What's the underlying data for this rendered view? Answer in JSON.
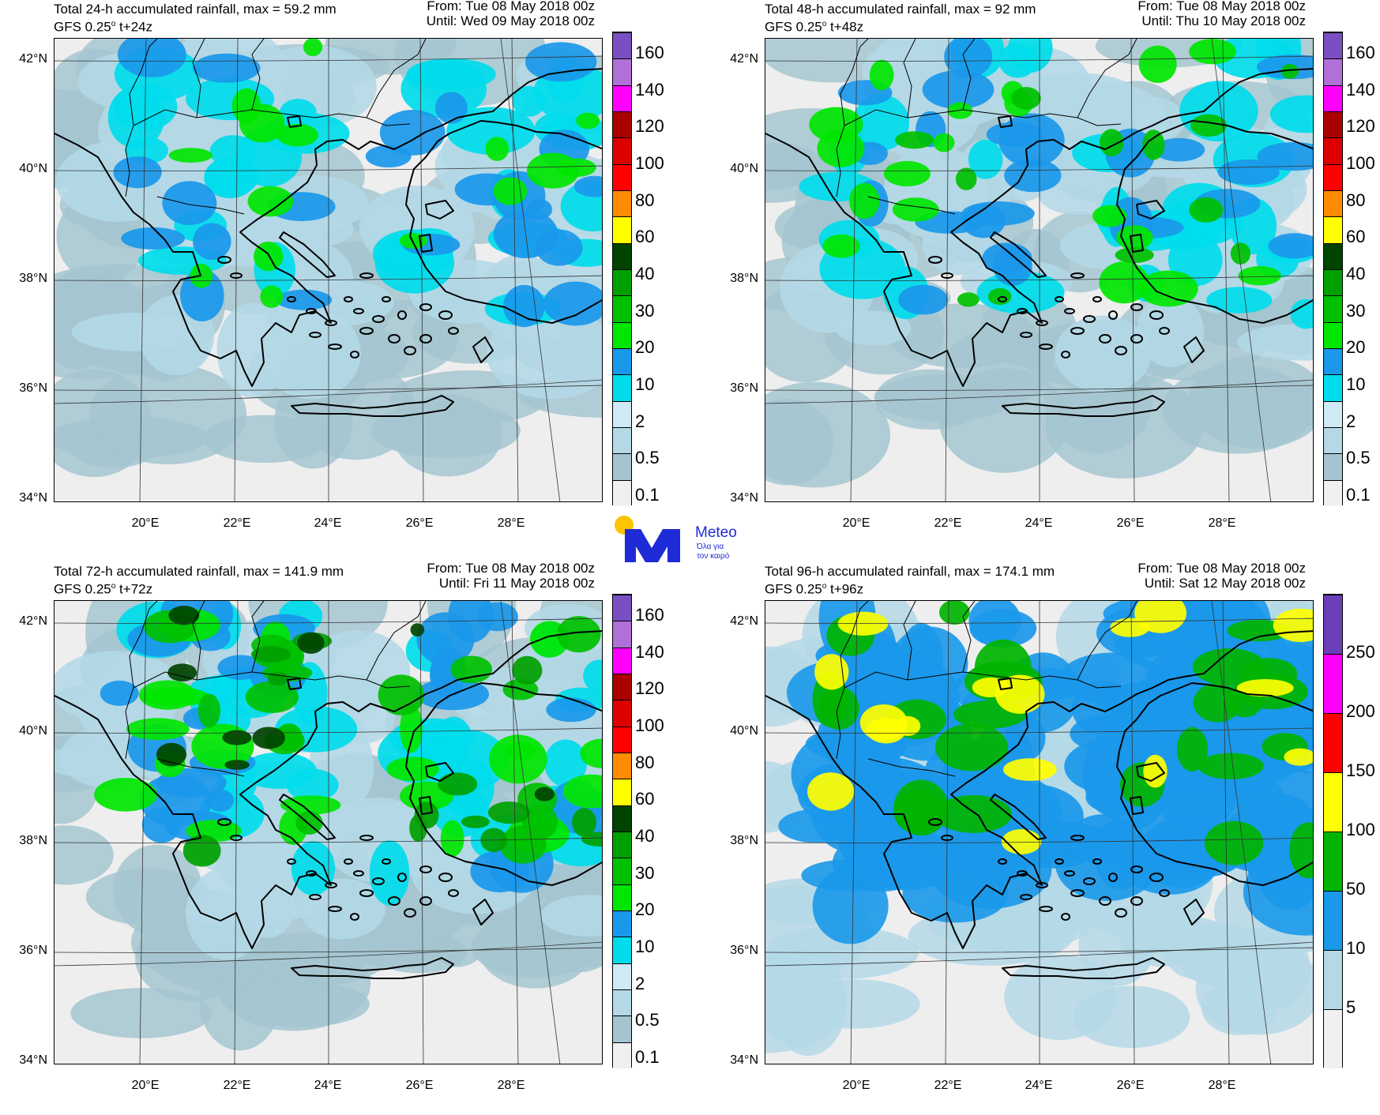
{
  "panels": [
    {
      "title": "Total 24-h accumulated rainfall, max = 59.2 mm",
      "model": "GFS 0.25",
      "degree_mark": "o",
      "lead": " t+24z",
      "from": "From: Tue 08 May 2018 00z",
      "until": "Until: Wed 09 May 2018 00z",
      "intensity": 0.35,
      "colorbar_labels": [
        "160",
        "140",
        "120",
        "100",
        "80",
        "60",
        "40",
        "30",
        "20",
        "10",
        "2",
        "0.5",
        "0.1"
      ]
    },
    {
      "title": "Total 48-h accumulated rainfall, max = 92 mm",
      "model": "GFS 0.25",
      "degree_mark": "o",
      "lead": " t+48z",
      "from": "From: Tue 08 May 2018 00z",
      "until": "Until: Thu 10 May 2018 00z",
      "intensity": 0.55,
      "colorbar_labels": [
        "160",
        "140",
        "120",
        "100",
        "80",
        "60",
        "40",
        "30",
        "20",
        "10",
        "2",
        "0.5",
        "0.1"
      ]
    },
    {
      "title": "Total 72-h accumulated rainfall, max = 141.9 mm",
      "model": "GFS 0.25",
      "degree_mark": "o",
      "lead": " t+72z",
      "from": "From: Tue 08 May 2018 00z",
      "until": "Until: Fri 11 May 2018 00z",
      "intensity": 0.8,
      "colorbar_labels": [
        "160",
        "140",
        "120",
        "100",
        "80",
        "60",
        "40",
        "30",
        "20",
        "10",
        "2",
        "0.5",
        "0.1"
      ]
    },
    {
      "title": "Total 96-h accumulated rainfall, max = 174.1 mm",
      "model": "GFS 0.25",
      "degree_mark": "o",
      "lead": " t+96z",
      "from": "From: Tue 08 May 2018 00z",
      "until": "Until: Sat 12 May 2018 00z",
      "intensity": 1.0,
      "colorbar_labels": [
        "250",
        "200",
        "150",
        "100",
        "50",
        "10",
        "5"
      ]
    }
  ],
  "lat_labels": [
    "42°N",
    "40°N",
    "38°N",
    "36°N",
    "34°N"
  ],
  "lon_labels": [
    "20°E",
    "22°E",
    "24°E",
    "26°E",
    "28°E"
  ],
  "palette_mm": [
    "#f0f0f0",
    "#a4c5d0",
    "#b4d8e6",
    "#cfeaf4",
    "#00dceb",
    "#1a98ea",
    "#00e600",
    "#00c000",
    "#00a000",
    "#004400",
    "#ffff00",
    "#ff8c00",
    "#ff0000",
    "#dd0000",
    "#aa0000",
    "#ff00ff",
    "#b070d8",
    "#7b4fc4"
  ],
  "palette_96": [
    "#f0f0f0",
    "#b4d8e6",
    "#1a98ea",
    "#00b400",
    "#ffff00",
    "#ff0000",
    "#ff00ff",
    "#6a3fb8"
  ],
  "logo": {
    "brand": "Meteo",
    "tagline_1": "Όλα για",
    "tagline_2": "τον καιρό",
    "accent": "#1e2bd6",
    "sun": "#ffc400"
  }
}
